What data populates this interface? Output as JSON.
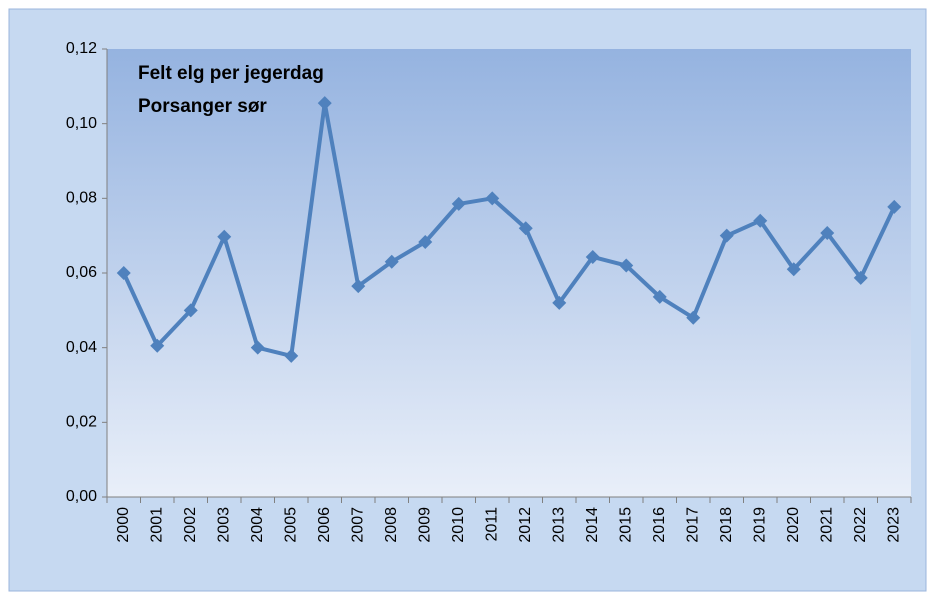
{
  "chart_data": {
    "type": "line",
    "title": "Felt elg per jegerdag",
    "subtitle": "Porsanger sør",
    "categories": [
      "2000",
      "2001",
      "2002",
      "2003",
      "2004",
      "2005",
      "2006",
      "2007",
      "2008",
      "2009",
      "2010",
      "2011",
      "2012",
      "2013",
      "2014",
      "2015",
      "2016",
      "2017",
      "2018",
      "2019",
      "2020",
      "2021",
      "2022",
      "2023"
    ],
    "series": [
      {
        "name": "Felt elg per jegerdag",
        "color": "#4f81bd",
        "values": [
          0.06,
          0.0405,
          0.05,
          0.0697,
          0.04,
          0.0378,
          0.1055,
          0.0565,
          0.063,
          0.0683,
          0.0785,
          0.08,
          0.072,
          0.052,
          0.0643,
          0.062,
          0.0536,
          0.048,
          0.07,
          0.074,
          0.061,
          0.0707,
          0.0587,
          0.0777
        ]
      }
    ],
    "ylim": [
      0,
      0.12
    ],
    "yticks": [
      {
        "value": 0,
        "label": "0,00"
      },
      {
        "value": 0.02,
        "label": "0,02"
      },
      {
        "value": 0.04,
        "label": "0,04"
      },
      {
        "value": 0.06,
        "label": "0,06"
      },
      {
        "value": 0.08,
        "label": "0,08"
      },
      {
        "value": 0.1,
        "label": "0,10"
      },
      {
        "value": 0.12,
        "label": "0,12"
      }
    ],
    "grid": false
  }
}
